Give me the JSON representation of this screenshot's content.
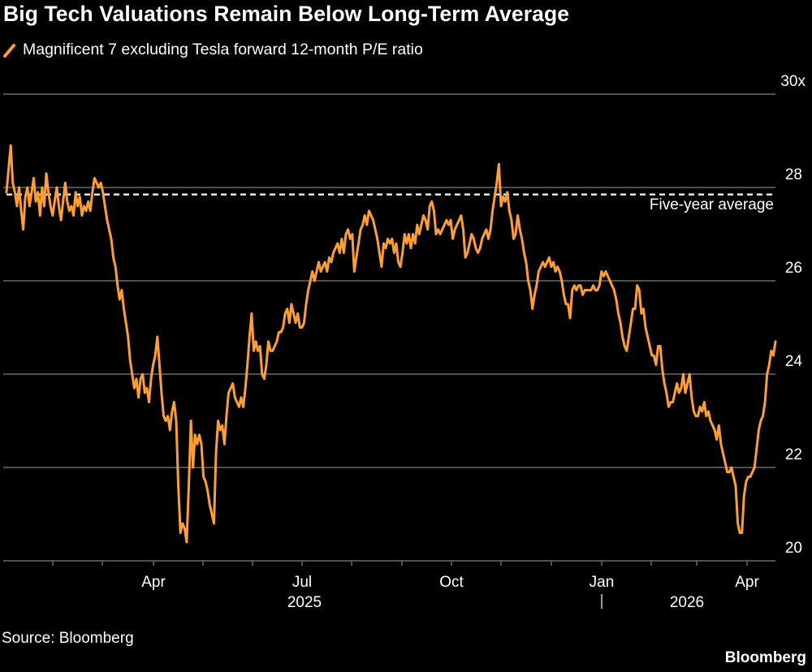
{
  "chart_data": {
    "type": "line",
    "title": "Big Tech Valuations Remain Below Long-Term Average",
    "series": [
      {
        "name": "Magnificent 7 excluding Tesla forward 12-month P/E ratio",
        "color": "#ff9f2e",
        "values": [
          27.9,
          28.4,
          28.9,
          28.1,
          27.9,
          27.6,
          28.0,
          27.5,
          27.1,
          27.8,
          28.0,
          27.6,
          27.9,
          28.2,
          27.7,
          27.9,
          27.4,
          28.0,
          27.6,
          28.3,
          27.9,
          27.6,
          27.4,
          27.7,
          28.0,
          27.6,
          27.3,
          27.7,
          28.1,
          27.7,
          27.5,
          27.6,
          27.4,
          27.9,
          27.6,
          27.8,
          27.4,
          27.6,
          27.5,
          27.7,
          27.5,
          27.9,
          28.2,
          28.1,
          28.0,
          28.1,
          27.9,
          27.6,
          27.3,
          27.1,
          26.9,
          26.5,
          26.3,
          25.9,
          25.6,
          25.8,
          25.4,
          25.1,
          24.8,
          24.3,
          24.0,
          23.7,
          23.9,
          23.5,
          23.9,
          24.0,
          23.6,
          23.7,
          23.4,
          23.9,
          24.2,
          24.4,
          24.8,
          24.2,
          23.6,
          23.1,
          23.0,
          23.1,
          22.8,
          23.2,
          23.4,
          23.0,
          21.6,
          20.6,
          20.8,
          20.7,
          20.4,
          21.6,
          23.0,
          22.0,
          22.7,
          22.5,
          22.7,
          22.5,
          21.8,
          21.7,
          21.5,
          21.2,
          21.0,
          20.8,
          22.3,
          23.0,
          22.8,
          22.9,
          22.5,
          23.1,
          23.6,
          23.7,
          23.8,
          23.5,
          23.4,
          23.3,
          23.5,
          23.3,
          23.7,
          24.2,
          24.8,
          25.3,
          24.5,
          24.7,
          24.5,
          24.6,
          24.0,
          23.9,
          24.2,
          24.7,
          24.5,
          24.5,
          24.6,
          24.7,
          24.9,
          24.9,
          25.0,
          25.3,
          25.4,
          25.1,
          25.5,
          25.3,
          25.1,
          25.3,
          25.0,
          25.0,
          25.1,
          25.5,
          25.8,
          26.0,
          26.2,
          26.0,
          26.2,
          26.4,
          26.2,
          26.3,
          26.4,
          26.2,
          26.5,
          26.4,
          26.6,
          26.7,
          26.8,
          26.6,
          26.9,
          26.6,
          27.0,
          27.1,
          26.9,
          27.0,
          26.2,
          26.5,
          26.8,
          27.1,
          27.2,
          27.4,
          27.2,
          27.5,
          27.4,
          27.3,
          27.1,
          26.9,
          26.6,
          26.3,
          26.8,
          26.7,
          26.9,
          26.8,
          26.9,
          26.6,
          26.8,
          26.4,
          26.3,
          26.6,
          27.0,
          26.8,
          27.0,
          26.7,
          27.0,
          26.8,
          27.2,
          27.0,
          27.2,
          27.4,
          27.3,
          27.1,
          27.6,
          27.7,
          27.5,
          27.0,
          27.1,
          27.0,
          27.1,
          27.2,
          27.3,
          27.2,
          27.3,
          26.9,
          27.1,
          27.2,
          27.3,
          27.4,
          27.1,
          26.5,
          26.6,
          26.8,
          27.0,
          26.9,
          26.7,
          26.6,
          26.7,
          26.9,
          27.0,
          27.1,
          26.9,
          27.1,
          27.5,
          27.8,
          28.1,
          28.5,
          27.6,
          27.8,
          27.7,
          27.9,
          27.5,
          27.3,
          26.9,
          27.0,
          27.4,
          27.1,
          26.9,
          26.6,
          26.4,
          26.0,
          25.8,
          25.4,
          25.7,
          25.9,
          26.2,
          26.3,
          26.4,
          26.3,
          26.4,
          26.5,
          26.3,
          26.4,
          26.2,
          26.3,
          26.2,
          26.0,
          25.7,
          25.5,
          25.5,
          25.2,
          25.8,
          25.9,
          25.8,
          25.9,
          25.9,
          25.7,
          25.8,
          25.8,
          25.8,
          25.8,
          25.9,
          25.8,
          25.8,
          25.9,
          26.2,
          26.1,
          26.2,
          26.1,
          26.0,
          25.9,
          25.8,
          25.6,
          25.3,
          25.1,
          24.8,
          24.6,
          24.5,
          24.8,
          25.1,
          25.4,
          25.4,
          25.9,
          25.8,
          25.3,
          25.4,
          25.0,
          24.8,
          24.6,
          24.4,
          24.4,
          24.2,
          24.6,
          24.6,
          24.1,
          23.8,
          23.6,
          23.3,
          23.4,
          23.4,
          23.6,
          23.8,
          23.6,
          23.7,
          24.0,
          23.6,
          23.8,
          24.0,
          23.5,
          23.2,
          23.1,
          23.1,
          23.3,
          23.2,
          23.4,
          23.1,
          23.2,
          23.0,
          22.9,
          22.8,
          22.6,
          22.9,
          22.5,
          22.3,
          22.1,
          21.9,
          21.9,
          22.0,
          21.8,
          21.6,
          20.8,
          20.6,
          20.6,
          21.4,
          21.7,
          21.8,
          21.8,
          21.9,
          22.0,
          22.4,
          22.8,
          23.0,
          23.1,
          23.4,
          24.0,
          24.2,
          24.5,
          24.4,
          24.7
        ]
      }
    ],
    "x_range_label": "Jan 2025 – Apr 2026",
    "x_tick_labels": [
      "Apr",
      "Jul",
      "Oct",
      "Jan",
      "Apr"
    ],
    "x_year_labels": [
      "2025",
      "2026"
    ],
    "y_tick_labels": [
      "30x",
      "28",
      "26",
      "24",
      "22",
      "20"
    ],
    "ylim": [
      20,
      30
    ],
    "reference_lines": [
      {
        "label": "Five-year average",
        "value": 27.85,
        "style": "dashed",
        "color": "#ffffff"
      }
    ],
    "xlabel": "",
    "ylabel": "",
    "grid": true,
    "legend_position": "top-left"
  },
  "footer": {
    "source": "Source: Bloomberg",
    "brand": "Bloomberg"
  },
  "colors": {
    "background": "#000000",
    "grid": "#6b6b6b",
    "line": "#ff9f2e",
    "text": "#ffffff"
  }
}
